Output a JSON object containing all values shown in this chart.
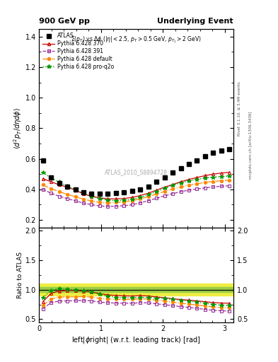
{
  "title_left": "900 GeV pp",
  "title_right": "Underlying Event",
  "annotation": "ATLAS_2010_S8894728",
  "subtitle": "$\\Sigma(p_T)$ vs $\\Delta\\phi$ ($|\\eta| < 2.5$, $p_T > 0.5$ GeV, $p_{T_1} > 2$ GeV)",
  "ylabel_main": "$\\langle d^2 p_T/d\\eta d\\phi\\rangle$",
  "ylabel_ratio": "Ratio to ATLAS",
  "xlabel": "left|$\\phi$right| (w.r.t. leading track) [rad]",
  "right_label1": "Rivet 3.1.10, ≥ 3.4M events",
  "right_label2": "mcplots.cern.ch [arXiv:1306.3436]",
  "ylim_main": [
    0.15,
    1.45
  ],
  "ylim_ratio": [
    0.45,
    2.05
  ],
  "yticks_main": [
    0.2,
    0.4,
    0.6,
    0.8,
    1.0,
    1.2,
    1.4
  ],
  "yticks_ratio": [
    0.5,
    1.0,
    1.5,
    2.0
  ],
  "xlim": [
    0.0,
    3.14159
  ],
  "xticks": [
    0,
    1,
    2,
    3
  ],
  "atlas_x": [
    0.064,
    0.196,
    0.327,
    0.458,
    0.589,
    0.72,
    0.85,
    0.981,
    1.112,
    1.243,
    1.374,
    1.505,
    1.636,
    1.767,
    1.897,
    2.028,
    2.159,
    2.29,
    2.421,
    2.552,
    2.683,
    2.814,
    2.944,
    3.075
  ],
  "atlas_y": [
    0.59,
    0.48,
    0.44,
    0.42,
    0.4,
    0.38,
    0.37,
    0.37,
    0.37,
    0.375,
    0.38,
    0.39,
    0.4,
    0.42,
    0.45,
    0.48,
    0.51,
    0.54,
    0.565,
    0.59,
    0.615,
    0.64,
    0.655,
    0.665
  ],
  "p370_x": [
    0.064,
    0.196,
    0.327,
    0.458,
    0.589,
    0.72,
    0.85,
    0.981,
    1.112,
    1.243,
    1.374,
    1.505,
    1.636,
    1.767,
    1.897,
    2.028,
    2.159,
    2.29,
    2.421,
    2.552,
    2.683,
    2.814,
    2.944,
    3.075
  ],
  "p370_y": [
    0.47,
    0.45,
    0.43,
    0.415,
    0.395,
    0.37,
    0.355,
    0.345,
    0.338,
    0.338,
    0.34,
    0.348,
    0.36,
    0.375,
    0.395,
    0.415,
    0.432,
    0.45,
    0.465,
    0.478,
    0.49,
    0.5,
    0.507,
    0.512
  ],
  "p391_x": [
    0.064,
    0.196,
    0.327,
    0.458,
    0.589,
    0.72,
    0.85,
    0.981,
    1.112,
    1.243,
    1.374,
    1.505,
    1.636,
    1.767,
    1.897,
    2.028,
    2.159,
    2.29,
    2.421,
    2.552,
    2.683,
    2.814,
    2.944,
    3.075
  ],
  "p391_y": [
    0.4,
    0.375,
    0.355,
    0.34,
    0.325,
    0.31,
    0.3,
    0.292,
    0.288,
    0.29,
    0.293,
    0.3,
    0.312,
    0.326,
    0.342,
    0.358,
    0.372,
    0.385,
    0.395,
    0.403,
    0.41,
    0.416,
    0.421,
    0.424
  ],
  "pdef_x": [
    0.064,
    0.196,
    0.327,
    0.458,
    0.589,
    0.72,
    0.85,
    0.981,
    1.112,
    1.243,
    1.374,
    1.505,
    1.636,
    1.767,
    1.897,
    2.028,
    2.159,
    2.29,
    2.421,
    2.552,
    2.683,
    2.814,
    2.944,
    3.075
  ],
  "pdef_y": [
    0.43,
    0.405,
    0.385,
    0.368,
    0.352,
    0.336,
    0.324,
    0.315,
    0.312,
    0.314,
    0.318,
    0.326,
    0.338,
    0.353,
    0.37,
    0.387,
    0.402,
    0.416,
    0.427,
    0.437,
    0.446,
    0.452,
    0.457,
    0.46
  ],
  "pq2o_x": [
    0.064,
    0.196,
    0.327,
    0.458,
    0.589,
    0.72,
    0.85,
    0.981,
    1.112,
    1.243,
    1.374,
    1.505,
    1.636,
    1.767,
    1.897,
    2.028,
    2.159,
    2.29,
    2.421,
    2.552,
    2.683,
    2.814,
    2.944,
    3.075
  ],
  "pq2o_y": [
    0.51,
    0.475,
    0.448,
    0.422,
    0.398,
    0.374,
    0.354,
    0.34,
    0.33,
    0.326,
    0.328,
    0.335,
    0.348,
    0.365,
    0.386,
    0.408,
    0.426,
    0.443,
    0.456,
    0.466,
    0.474,
    0.48,
    0.484,
    0.487
  ],
  "atlas_color": "#000000",
  "p370_color": "#cc0000",
  "p391_color": "#993399",
  "pdef_color": "#ff8800",
  "pq2o_color": "#009900",
  "band_outer_color": "#eeee44",
  "band_inner_color": "#99cc44",
  "band_outer_lo": 0.9,
  "band_outer_hi": 1.1,
  "band_inner_lo": 0.96,
  "band_inner_hi": 1.04
}
